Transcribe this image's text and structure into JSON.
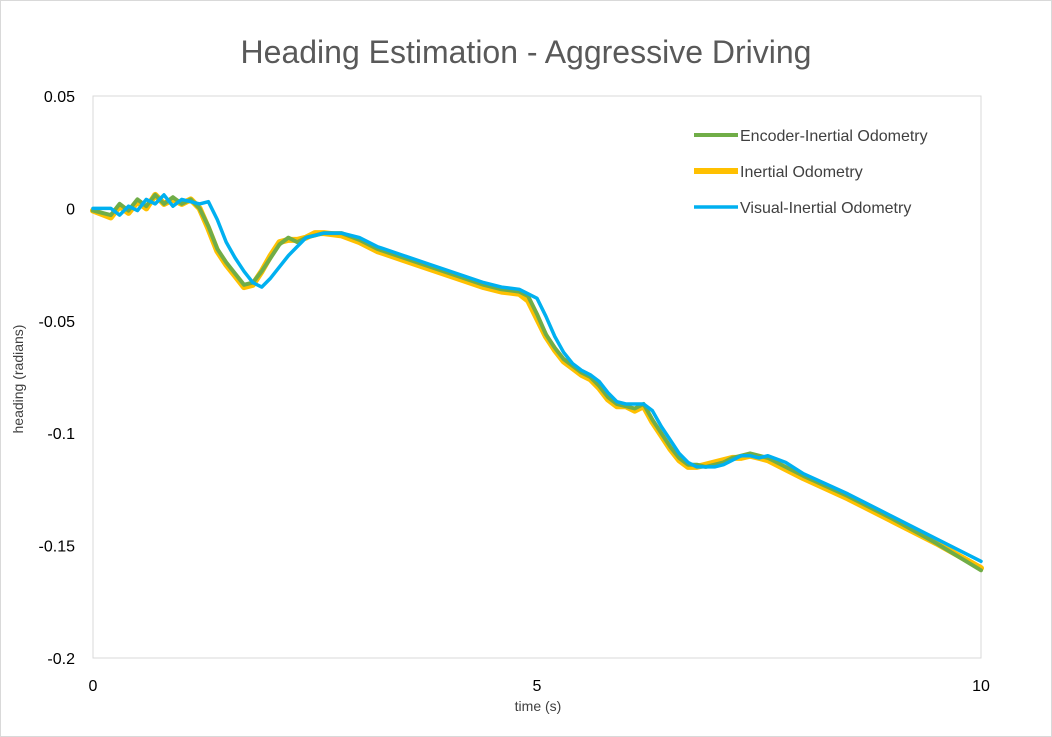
{
  "chart_data": {
    "type": "line",
    "title": "Heading Estimation - Aggressive Driving",
    "xlabel": "time (s)",
    "ylabel": "heading (radians)",
    "xlim": [
      0,
      10
    ],
    "ylim": [
      -0.2,
      0.05
    ],
    "x_ticks": [
      "0",
      "5",
      "10"
    ],
    "y_ticks": [
      "0.05",
      "0",
      "-0.05",
      "-0.1",
      "-0.15",
      "-0.2"
    ],
    "grid": "none",
    "legend_position": "top-right",
    "series": [
      {
        "name": "Encoder-Inertial Odometry",
        "color": "#70ad47",
        "points": [
          [
            0,
            -0.001
          ],
          [
            0.2,
            -0.003
          ],
          [
            0.3,
            0.002
          ],
          [
            0.4,
            -0.001
          ],
          [
            0.5,
            0.004
          ],
          [
            0.6,
            0.001
          ],
          [
            0.7,
            0.006
          ],
          [
            0.8,
            0.002
          ],
          [
            0.9,
            0.005
          ],
          [
            1.0,
            0.002
          ],
          [
            1.1,
            0.004
          ],
          [
            1.2,
            0.0
          ],
          [
            1.3,
            -0.008
          ],
          [
            1.4,
            -0.018
          ],
          [
            1.5,
            -0.024
          ],
          [
            1.6,
            -0.029
          ],
          [
            1.7,
            -0.034
          ],
          [
            1.8,
            -0.033
          ],
          [
            1.9,
            -0.028
          ],
          [
            2.0,
            -0.022
          ],
          [
            2.1,
            -0.016
          ],
          [
            2.2,
            -0.013
          ],
          [
            2.3,
            -0.015
          ],
          [
            2.4,
            -0.013
          ],
          [
            2.5,
            -0.012
          ],
          [
            2.6,
            -0.011
          ],
          [
            2.8,
            -0.011
          ],
          [
            3.0,
            -0.014
          ],
          [
            3.2,
            -0.018
          ],
          [
            3.5,
            -0.022
          ],
          [
            3.8,
            -0.026
          ],
          [
            4.1,
            -0.03
          ],
          [
            4.4,
            -0.034
          ],
          [
            4.6,
            -0.036
          ],
          [
            4.8,
            -0.037
          ],
          [
            4.9,
            -0.039
          ],
          [
            5.0,
            -0.047
          ],
          [
            5.1,
            -0.056
          ],
          [
            5.2,
            -0.062
          ],
          [
            5.3,
            -0.067
          ],
          [
            5.4,
            -0.07
          ],
          [
            5.5,
            -0.073
          ],
          [
            5.6,
            -0.075
          ],
          [
            5.7,
            -0.079
          ],
          [
            5.8,
            -0.084
          ],
          [
            5.9,
            -0.087
          ],
          [
            6.0,
            -0.088
          ],
          [
            6.1,
            -0.089
          ],
          [
            6.2,
            -0.087
          ],
          [
            6.3,
            -0.094
          ],
          [
            6.4,
            -0.1
          ],
          [
            6.5,
            -0.106
          ],
          [
            6.6,
            -0.111
          ],
          [
            6.7,
            -0.114
          ],
          [
            6.8,
            -0.114
          ],
          [
            6.9,
            -0.115
          ],
          [
            7.0,
            -0.114
          ],
          [
            7.1,
            -0.113
          ],
          [
            7.2,
            -0.111
          ],
          [
            7.3,
            -0.11
          ],
          [
            7.4,
            -0.109
          ],
          [
            7.5,
            -0.11
          ],
          [
            7.6,
            -0.111
          ],
          [
            7.8,
            -0.115
          ],
          [
            8.0,
            -0.119
          ],
          [
            8.5,
            -0.128
          ],
          [
            9.0,
            -0.138
          ],
          [
            9.5,
            -0.149
          ],
          [
            10.0,
            -0.161
          ]
        ]
      },
      {
        "name": "Inertial Odometry",
        "color": "#ffc000",
        "points": [
          [
            0,
            -0.001
          ],
          [
            0.2,
            -0.004
          ],
          [
            0.3,
            0.001
          ],
          [
            0.4,
            -0.002
          ],
          [
            0.5,
            0.003
          ],
          [
            0.6,
            0.0
          ],
          [
            0.7,
            0.006
          ],
          [
            0.8,
            0.002
          ],
          [
            0.9,
            0.004
          ],
          [
            1.0,
            0.002
          ],
          [
            1.1,
            0.004
          ],
          [
            1.2,
            0.0
          ],
          [
            1.3,
            -0.009
          ],
          [
            1.4,
            -0.019
          ],
          [
            1.5,
            -0.025
          ],
          [
            1.6,
            -0.03
          ],
          [
            1.7,
            -0.035
          ],
          [
            1.8,
            -0.034
          ],
          [
            1.9,
            -0.028
          ],
          [
            2.0,
            -0.021
          ],
          [
            2.1,
            -0.015
          ],
          [
            2.2,
            -0.014
          ],
          [
            2.3,
            -0.014
          ],
          [
            2.4,
            -0.013
          ],
          [
            2.5,
            -0.011
          ],
          [
            2.6,
            -0.011
          ],
          [
            2.8,
            -0.012
          ],
          [
            3.0,
            -0.015
          ],
          [
            3.2,
            -0.019
          ],
          [
            3.5,
            -0.023
          ],
          [
            3.8,
            -0.027
          ],
          [
            4.1,
            -0.031
          ],
          [
            4.4,
            -0.035
          ],
          [
            4.6,
            -0.037
          ],
          [
            4.8,
            -0.038
          ],
          [
            4.9,
            -0.041
          ],
          [
            5.0,
            -0.049
          ],
          [
            5.1,
            -0.057
          ],
          [
            5.2,
            -0.063
          ],
          [
            5.3,
            -0.068
          ],
          [
            5.4,
            -0.071
          ],
          [
            5.5,
            -0.074
          ],
          [
            5.6,
            -0.076
          ],
          [
            5.7,
            -0.08
          ],
          [
            5.8,
            -0.085
          ],
          [
            5.9,
            -0.088
          ],
          [
            6.0,
            -0.088
          ],
          [
            6.1,
            -0.09
          ],
          [
            6.2,
            -0.088
          ],
          [
            6.3,
            -0.095
          ],
          [
            6.4,
            -0.101
          ],
          [
            6.5,
            -0.107
          ],
          [
            6.6,
            -0.112
          ],
          [
            6.7,
            -0.115
          ],
          [
            6.8,
            -0.115
          ],
          [
            6.9,
            -0.114
          ],
          [
            7.0,
            -0.113
          ],
          [
            7.1,
            -0.112
          ],
          [
            7.2,
            -0.111
          ],
          [
            7.3,
            -0.111
          ],
          [
            7.4,
            -0.11
          ],
          [
            7.5,
            -0.111
          ],
          [
            7.6,
            -0.112
          ],
          [
            7.8,
            -0.116
          ],
          [
            8.0,
            -0.12
          ],
          [
            8.5,
            -0.129
          ],
          [
            9.0,
            -0.139
          ],
          [
            9.5,
            -0.149
          ],
          [
            10.0,
            -0.16
          ]
        ]
      },
      {
        "name": "Visual-Inertial Odometry",
        "color": "#00b0f0",
        "points": [
          [
            0,
            0.0
          ],
          [
            0.2,
            0.0
          ],
          [
            0.3,
            -0.003
          ],
          [
            0.4,
            0.001
          ],
          [
            0.5,
            -0.001
          ],
          [
            0.6,
            0.004
          ],
          [
            0.7,
            0.002
          ],
          [
            0.8,
            0.006
          ],
          [
            0.9,
            0.001
          ],
          [
            1.0,
            0.004
          ],
          [
            1.1,
            0.003
          ],
          [
            1.2,
            0.002
          ],
          [
            1.3,
            0.003
          ],
          [
            1.4,
            -0.005
          ],
          [
            1.5,
            -0.015
          ],
          [
            1.6,
            -0.022
          ],
          [
            1.7,
            -0.028
          ],
          [
            1.8,
            -0.033
          ],
          [
            1.9,
            -0.035
          ],
          [
            2.0,
            -0.031
          ],
          [
            2.1,
            -0.026
          ],
          [
            2.2,
            -0.021
          ],
          [
            2.3,
            -0.017
          ],
          [
            2.4,
            -0.013
          ],
          [
            2.5,
            -0.012
          ],
          [
            2.6,
            -0.011
          ],
          [
            2.8,
            -0.011
          ],
          [
            3.0,
            -0.013
          ],
          [
            3.2,
            -0.017
          ],
          [
            3.5,
            -0.021
          ],
          [
            3.8,
            -0.025
          ],
          [
            4.1,
            -0.029
          ],
          [
            4.4,
            -0.033
          ],
          [
            4.6,
            -0.035
          ],
          [
            4.8,
            -0.036
          ],
          [
            5.0,
            -0.04
          ],
          [
            5.1,
            -0.048
          ],
          [
            5.2,
            -0.057
          ],
          [
            5.3,
            -0.064
          ],
          [
            5.4,
            -0.069
          ],
          [
            5.5,
            -0.072
          ],
          [
            5.6,
            -0.074
          ],
          [
            5.7,
            -0.077
          ],
          [
            5.8,
            -0.082
          ],
          [
            5.9,
            -0.086
          ],
          [
            6.0,
            -0.087
          ],
          [
            6.1,
            -0.087
          ],
          [
            6.2,
            -0.087
          ],
          [
            6.3,
            -0.09
          ],
          [
            6.4,
            -0.097
          ],
          [
            6.5,
            -0.103
          ],
          [
            6.6,
            -0.109
          ],
          [
            6.7,
            -0.113
          ],
          [
            6.8,
            -0.115
          ],
          [
            6.9,
            -0.115
          ],
          [
            7.0,
            -0.115
          ],
          [
            7.1,
            -0.114
          ],
          [
            7.2,
            -0.112
          ],
          [
            7.3,
            -0.11
          ],
          [
            7.4,
            -0.11
          ],
          [
            7.5,
            -0.111
          ],
          [
            7.6,
            -0.11
          ],
          [
            7.8,
            -0.113
          ],
          [
            8.0,
            -0.118
          ],
          [
            8.5,
            -0.127
          ],
          [
            9.0,
            -0.137
          ],
          [
            9.5,
            -0.147
          ],
          [
            10.0,
            -0.157
          ]
        ]
      }
    ]
  }
}
